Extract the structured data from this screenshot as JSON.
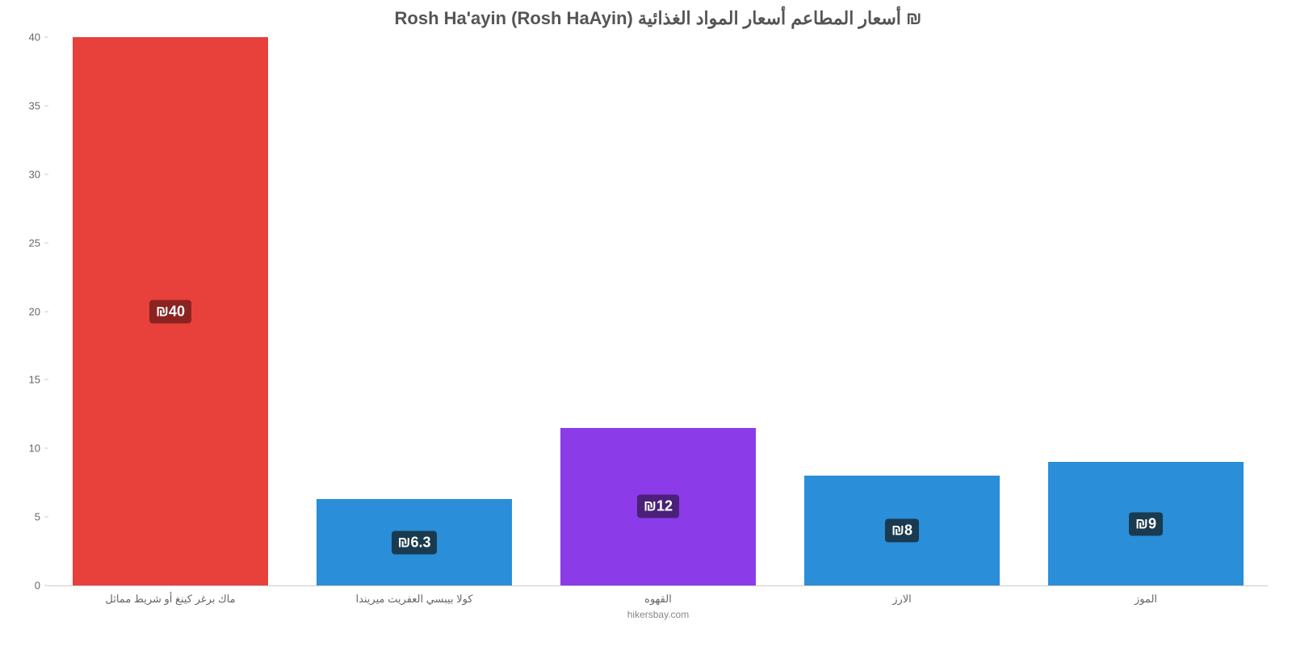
{
  "chart": {
    "type": "bar",
    "title": "Rosh Ha'ayin (Rosh HaAyin) أسعار المطاعم أسعار المواد الغذائية ₪",
    "title_fontsize": 22,
    "title_color": "#555555",
    "source": "hikersbay.com",
    "source_fontsize": 12,
    "source_color": "#888888",
    "background_color": "#ffffff",
    "axis_color": "#cccccc",
    "tick_label_color": "#666666",
    "tick_label_fontsize": 13,
    "x_label_fontsize": 13,
    "ylim_min": 0,
    "ylim_max": 40,
    "ytick_step": 5,
    "yticks": [
      0,
      5,
      10,
      15,
      20,
      25,
      30,
      35,
      40
    ],
    "bar_width_pct": 80,
    "value_label_fontsize": 18,
    "value_label_color": "#ffffff",
    "categories": [
      {
        "label": "ماك برغر كينغ أو شريط مماثل",
        "value": 40,
        "display_value": "₪40",
        "bar_color": "#e8403b",
        "badge_bg": "#8b2421"
      },
      {
        "label": "كولا بيبسي العفريت ميريندا",
        "value": 6.3,
        "display_value": "₪6.3",
        "bar_color": "#2a8ed8",
        "badge_bg": "#1a3a4f"
      },
      {
        "label": "القهوه",
        "value": 11.5,
        "display_value": "₪12",
        "bar_color": "#8b3be8",
        "badge_bg": "#4a2078"
      },
      {
        "label": "الارز",
        "value": 8,
        "display_value": "₪8",
        "bar_color": "#2a8ed8",
        "badge_bg": "#1a3a4f"
      },
      {
        "label": "الموز",
        "value": 9,
        "display_value": "₪9",
        "bar_color": "#2a8ed8",
        "badge_bg": "#1a3a4f"
      }
    ]
  }
}
